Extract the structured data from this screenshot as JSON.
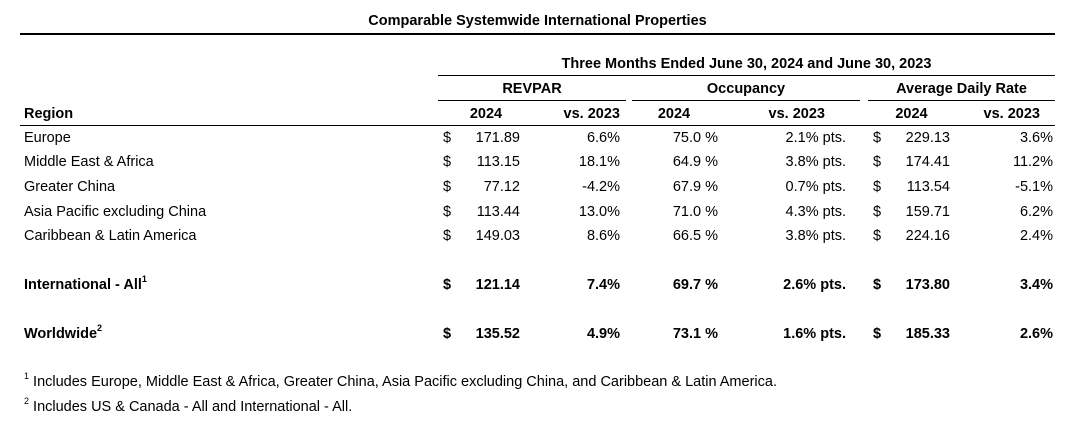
{
  "title": "Comparable Systemwide International Properties",
  "period": "Three Months Ended June 30, 2024 and June 30, 2023",
  "groups": {
    "revpar": "REVPAR",
    "occupancy": "Occupancy",
    "adr": "Average Daily Rate"
  },
  "columns": {
    "region": "Region",
    "year": "2024",
    "vs": "vs. 2023"
  },
  "rows": [
    {
      "region": "Europe",
      "cur1": "$",
      "revpar": "171.89",
      "revpar_vs": "6.6%",
      "occ": "75.0 %",
      "occ_vs": "2.1% pts.",
      "cur2": "$",
      "adr": "229.13",
      "adr_vs": "3.6%"
    },
    {
      "region": "Middle East & Africa",
      "cur1": "$",
      "revpar": "113.15",
      "revpar_vs": "18.1%",
      "occ": "64.9 %",
      "occ_vs": "3.8% pts.",
      "cur2": "$",
      "adr": "174.41",
      "adr_vs": "11.2%"
    },
    {
      "region": "Greater China",
      "cur1": "$",
      "revpar": "77.12",
      "revpar_vs": "-4.2%",
      "occ": "67.9 %",
      "occ_vs": "0.7% pts.",
      "cur2": "$",
      "adr": "113.54",
      "adr_vs": "-5.1%"
    },
    {
      "region": "Asia Pacific excluding China",
      "cur1": "$",
      "revpar": "113.44",
      "revpar_vs": "13.0%",
      "occ": "71.0 %",
      "occ_vs": "4.3% pts.",
      "cur2": "$",
      "adr": "159.71",
      "adr_vs": "6.2%"
    },
    {
      "region": "Caribbean & Latin America",
      "cur1": "$",
      "revpar": "149.03",
      "revpar_vs": "8.6%",
      "occ": "66.5 %",
      "occ_vs": "3.8% pts.",
      "cur2": "$",
      "adr": "224.16",
      "adr_vs": "2.4%"
    }
  ],
  "totals": [
    {
      "region": "International - All",
      "sup": "1",
      "cur1": "$",
      "revpar": "121.14",
      "revpar_vs": "7.4%",
      "occ": "69.7 %",
      "occ_vs": "2.6% pts.",
      "cur2": "$",
      "adr": "173.80",
      "adr_vs": "3.4%"
    },
    {
      "region": "Worldwide",
      "sup": "2",
      "cur1": "$",
      "revpar": "135.52",
      "revpar_vs": "4.9%",
      "occ": "73.1 %",
      "occ_vs": "1.6% pts.",
      "cur2": "$",
      "adr": "185.33",
      "adr_vs": "2.6%"
    }
  ],
  "footnotes": [
    {
      "mark": "1",
      "text": "Includes Europe, Middle East & Africa, Greater China, Asia Pacific excluding China, and Caribbean & Latin America."
    },
    {
      "mark": "2",
      "text": "Includes US & Canada - All and International - All."
    }
  ]
}
